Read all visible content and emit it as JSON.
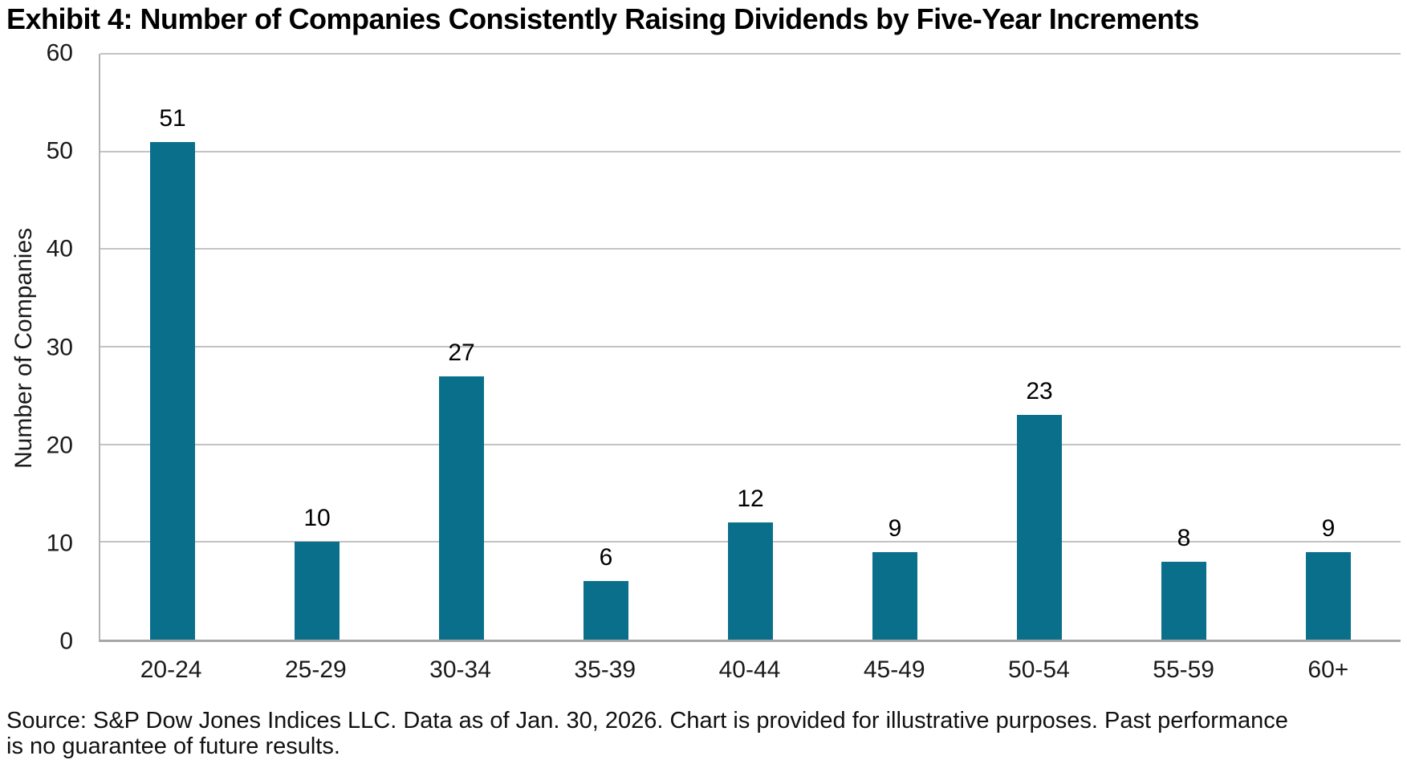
{
  "title": "Exhibit 4: Number of Companies Consistently Raising Dividends by Five-Year Increments",
  "source_note": "Source: S&P Dow Jones Indices LLC. Data as of Jan. 30, 2026. Chart is provided for illustrative purposes. Past performance is no guarantee of future results.",
  "chart_data": {
    "type": "bar",
    "title": "Exhibit 4: Number of Companies Consistently Raising Dividends by Five-Year Increments",
    "categories": [
      "20-24",
      "25-29",
      "30-34",
      "35-39",
      "40-44",
      "45-49",
      "50-54",
      "55-59",
      "60+"
    ],
    "values": [
      51,
      10,
      27,
      6,
      12,
      9,
      23,
      8,
      9
    ],
    "xlabel": "",
    "ylabel": "Number of Companies",
    "ylim": [
      0,
      60
    ],
    "ytick_step": 10,
    "yticks": [
      0,
      10,
      20,
      30,
      40,
      50,
      60
    ],
    "grid": true,
    "gridline_color": "#c3c3c3",
    "axis_color": "#a6a6a6",
    "bar_color": "#0a6f8b",
    "data_labels": true,
    "legend": "none"
  }
}
